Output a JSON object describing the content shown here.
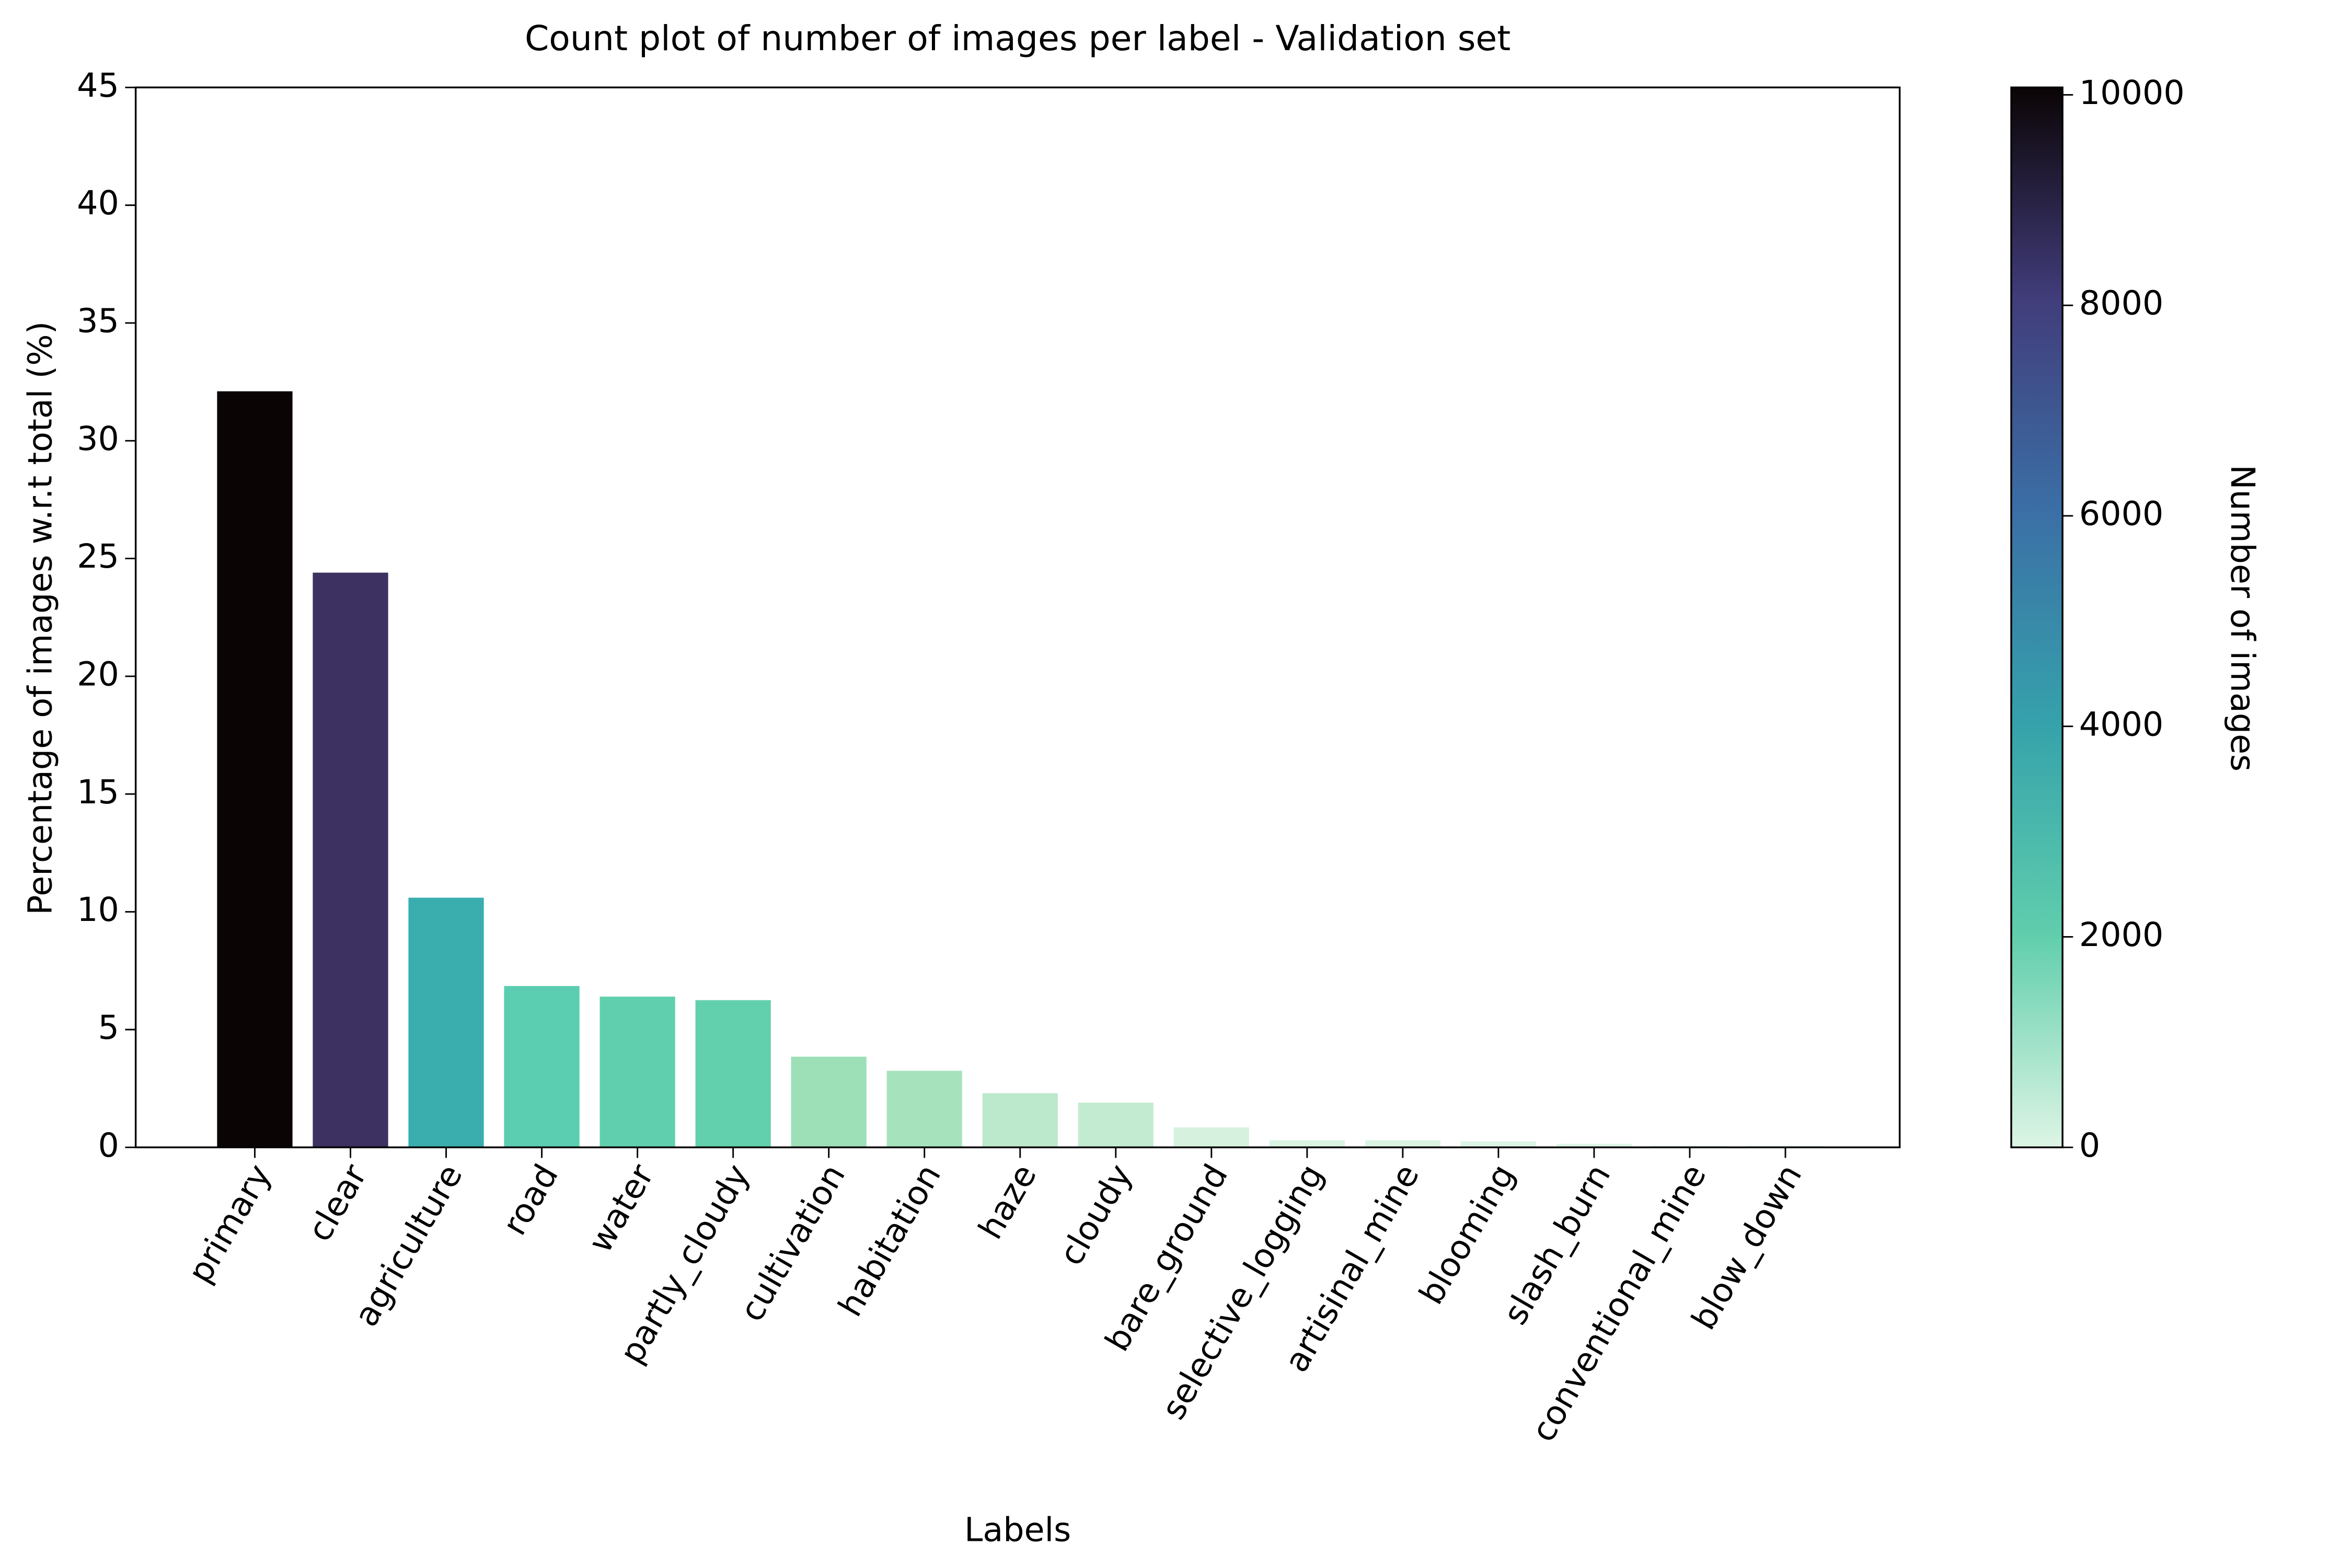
{
  "chart_data": {
    "type": "bar",
    "title": "Count plot of number of images per label - Validation set",
    "x_label": "Labels",
    "y_label": "Percentage of images w.r.t total (%)",
    "categories": [
      "primary",
      "clear",
      "agriculture",
      "road",
      "water",
      "partly_cloudy",
      "cultivation",
      "habitation",
      "haze",
      "cloudy",
      "bare_ground",
      "selective_logging",
      "artisinal_mine",
      "blooming",
      "slash_burn",
      "conventional_mine",
      "blow_down"
    ],
    "values": [
      32.1,
      24.4,
      10.6,
      6.85,
      6.4,
      6.25,
      3.85,
      3.25,
      2.3,
      1.9,
      0.85,
      0.3,
      0.3,
      0.25,
      0.15,
      0.07,
      0.07
    ],
    "colors": [
      "#0b0405",
      "#3d3161",
      "#3aadaf",
      "#5bcdb0",
      "#60cfae",
      "#63d0ad",
      "#9de0b8",
      "#a6e3bd",
      "#bce9cc",
      "#c3ebd1",
      "#d6f2df",
      "#dbf4e3",
      "#dbf4e3",
      "#dcf4e4",
      "#ddf5e5",
      "#def5e5",
      "#def5e5"
    ],
    "ylim": [
      0,
      45
    ],
    "yticks": [
      0,
      5,
      10,
      15,
      20,
      25,
      30,
      35,
      40,
      45
    ],
    "colorbar": {
      "label": "Number of images",
      "lim": [
        0,
        10070
      ],
      "ticks": [
        0,
        2000,
        4000,
        6000,
        8000,
        10000
      ],
      "colors": [
        "#def5e5",
        "#60ceac",
        "#35a2ab",
        "#3b6fa6",
        "#413d7b",
        "#0b0405"
      ]
    }
  }
}
